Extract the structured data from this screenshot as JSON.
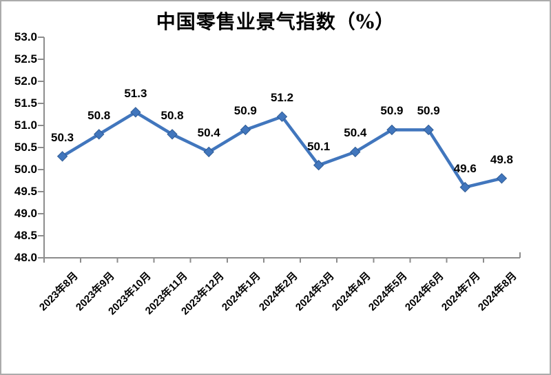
{
  "window": {
    "background": "#FFFFFF",
    "border_color": "#ABABAB"
  },
  "chart_data": {
    "type": "line",
    "title": "中国零售业景气指数（%）",
    "categories": [
      "2023年8月",
      "2023年9月",
      "2023年10月",
      "2023年11月",
      "2023年12月",
      "2024年1月",
      "2024年2月",
      "2024年3月",
      "2024年4月",
      "2024年5月",
      "2024年6月",
      "2024年7月",
      "2024年8月"
    ],
    "values": [
      50.3,
      50.8,
      51.3,
      50.8,
      50.4,
      50.9,
      51.2,
      50.1,
      50.4,
      50.9,
      50.9,
      49.6,
      49.8
    ],
    "data_labels": [
      "50.3",
      "50.8",
      "51.3",
      "50.8",
      "50.4",
      "50.9",
      "51.2",
      "50.1",
      "50.4",
      "50.9",
      "50.9",
      "49.6",
      "49.8"
    ],
    "xlabel": "",
    "ylabel": "",
    "ylim": [
      48.0,
      53.0
    ],
    "ytick_step": 0.5,
    "ytick_labels": [
      "53.0",
      "52.5",
      "52.0",
      "51.5",
      "51.0",
      "50.5",
      "50.0",
      "49.5",
      "49.0",
      "48.5",
      "48.0"
    ],
    "grid": false,
    "legend": "none",
    "marker": "diamond",
    "line_color": "#4176BD",
    "marker_edge_color": "#2F5B94",
    "axis_color": "#8C8C8C",
    "label_color": "#000000"
  }
}
